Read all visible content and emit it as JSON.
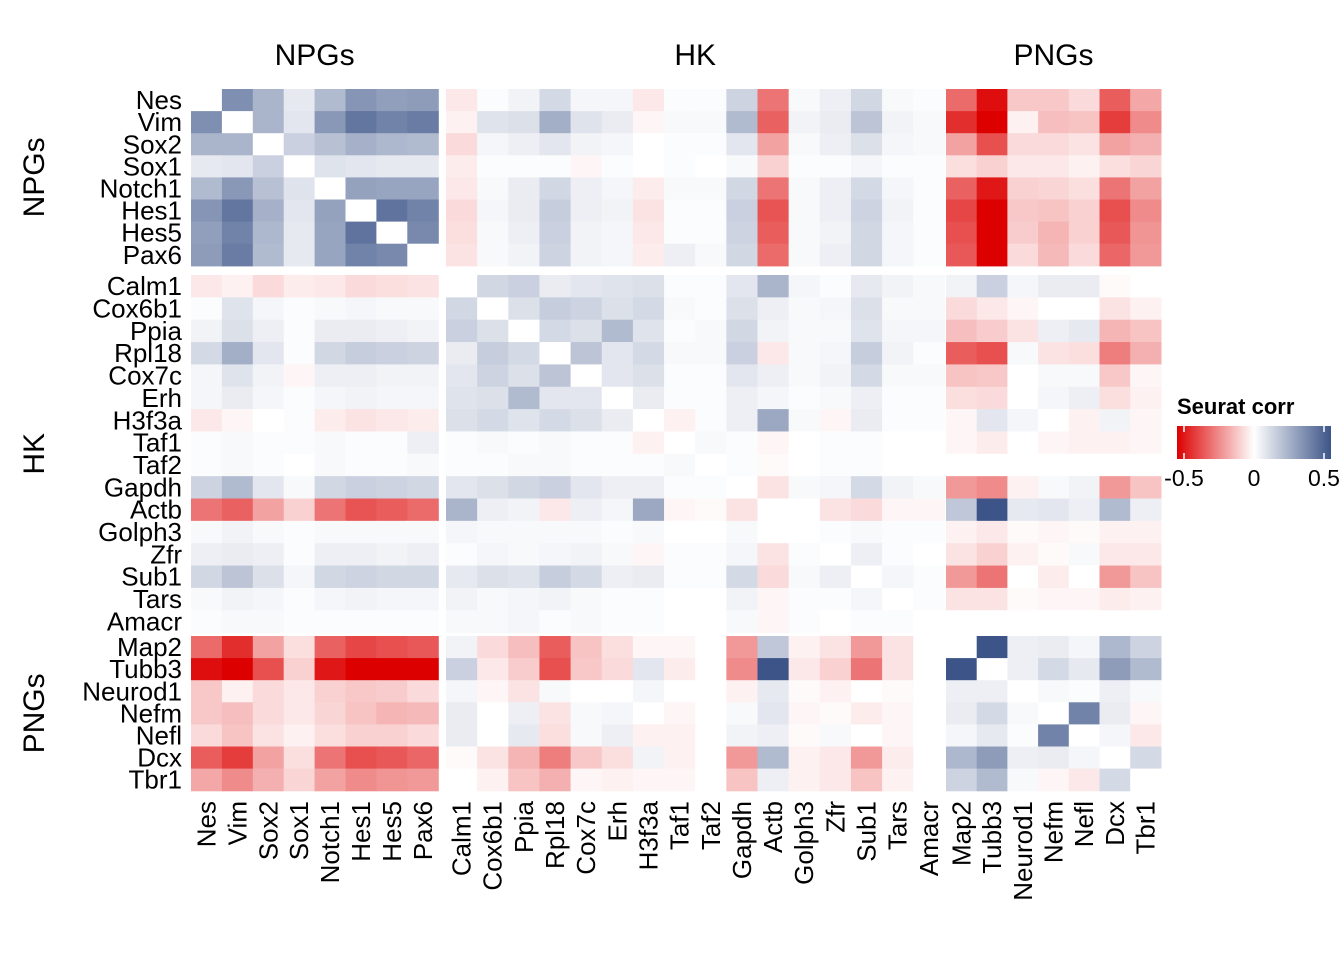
{
  "chart_data": {
    "type": "heatmap",
    "genes": [
      "Nes",
      "Vim",
      "Sox2",
      "Sox1",
      "Notch1",
      "Hes1",
      "Hes5",
      "Pax6",
      "Calm1",
      "Cox6b1",
      "Ppia",
      "Rpl18",
      "Cox7c",
      "Erh",
      "H3f3a",
      "Taf1",
      "Taf2",
      "Gapdh",
      "Actb",
      "Golph3",
      "Zfr",
      "Sub1",
      "Tars",
      "Amacr",
      "Map2",
      "Tubb3",
      "Neurod1",
      "Nefm",
      "Nefl",
      "Dcx",
      "Tbr1"
    ],
    "groups": [
      {
        "label": "NPGs",
        "size": 8
      },
      {
        "label": "HK",
        "size": 16
      },
      {
        "label": "PNGs",
        "size": 7
      }
    ],
    "legend": {
      "title": "Seurat corr",
      "ticks": [
        "-0.5",
        "0",
        "0.5"
      ],
      "range": [
        -0.55,
        0.55
      ],
      "colors": {
        "low": "#DD0000",
        "mid": "#FFFFFF",
        "high": "#3C5488"
      }
    },
    "profiles": {
      "Nes": [
        0,
        0.36,
        0.24,
        0.07,
        0.22,
        0.34,
        0.31,
        0.32,
        -0.05,
        0.01,
        0.04,
        0.12,
        0.03,
        0.03,
        -0.05,
        0.01,
        0.01,
        0.14,
        -0.3,
        0.02,
        0.05,
        0.13,
        0.02,
        0.01,
        -0.32,
        -0.52,
        -0.12,
        -0.12,
        -0.08,
        -0.35,
        -0.19
      ],
      "Vim": [
        0.36,
        0,
        0.24,
        0.08,
        0.33,
        0.44,
        0.4,
        0.42,
        -0.03,
        0.09,
        0.1,
        0.26,
        0.09,
        0.06,
        -0.02,
        0.02,
        0.02,
        0.22,
        -0.34,
        0.04,
        0.06,
        0.19,
        0.04,
        0.02,
        -0.45,
        -0.65,
        -0.03,
        -0.14,
        -0.13,
        -0.42,
        -0.25
      ],
      "Sox2": [
        0.24,
        0.24,
        0,
        0.15,
        0.2,
        0.25,
        0.23,
        0.22,
        -0.08,
        0.03,
        0.05,
        0.08,
        0.04,
        0.03,
        0.0,
        0.01,
        0.01,
        0.08,
        -0.2,
        0.02,
        0.05,
        0.1,
        0.03,
        0.02,
        -0.2,
        -0.38,
        -0.08,
        -0.08,
        -0.06,
        -0.2,
        -0.17
      ],
      "Sox1": [
        0.07,
        0.08,
        0.15,
        0,
        0.09,
        0.08,
        0.07,
        0.07,
        -0.04,
        0.01,
        0.01,
        0.01,
        -0.02,
        0.01,
        0.0,
        0.01,
        0.0,
        0.02,
        -0.1,
        0.01,
        0.01,
        0.03,
        0.01,
        0.01,
        -0.07,
        -0.1,
        -0.05,
        -0.05,
        -0.03,
        -0.07,
        -0.09
      ],
      "Notch1": [
        0.22,
        0.33,
        0.2,
        0.09,
        0,
        0.3,
        0.29,
        0.29,
        -0.05,
        0.02,
        0.06,
        0.13,
        0.05,
        0.03,
        -0.04,
        0.02,
        0.02,
        0.13,
        -0.3,
        0.02,
        0.05,
        0.12,
        0.03,
        0.01,
        -0.34,
        -0.5,
        -0.1,
        -0.09,
        -0.07,
        -0.3,
        -0.2
      ],
      "Hes1": [
        0.34,
        0.44,
        0.25,
        0.08,
        0.3,
        0,
        0.45,
        0.4,
        -0.08,
        0.03,
        0.06,
        0.16,
        0.05,
        0.04,
        -0.06,
        0.01,
        0.01,
        0.15,
        -0.37,
        0.02,
        0.05,
        0.14,
        0.04,
        0.01,
        -0.4,
        -0.63,
        -0.12,
        -0.13,
        -0.1,
        -0.38,
        -0.25
      ],
      "Hes5": [
        0.31,
        0.4,
        0.23,
        0.07,
        0.29,
        0.45,
        0,
        0.38,
        -0.07,
        0.02,
        0.05,
        0.15,
        0.04,
        0.03,
        -0.05,
        0.01,
        0.01,
        0.14,
        -0.35,
        0.02,
        0.04,
        0.13,
        0.03,
        0.01,
        -0.38,
        -0.62,
        -0.11,
        -0.16,
        -0.1,
        -0.36,
        -0.23
      ],
      "Pax6": [
        0.32,
        0.42,
        0.22,
        0.07,
        0.29,
        0.4,
        0.38,
        0,
        -0.06,
        0.02,
        0.04,
        0.14,
        0.04,
        0.03,
        -0.04,
        0.05,
        0.02,
        0.13,
        -0.32,
        0.02,
        0.05,
        0.13,
        0.03,
        0.01,
        -0.36,
        -0.6,
        -0.08,
        -0.15,
        -0.08,
        -0.33,
        -0.22
      ],
      "Calm1": [
        -0.05,
        -0.03,
        -0.08,
        -0.04,
        -0.05,
        -0.08,
        -0.07,
        -0.06,
        0,
        0.13,
        0.15,
        0.06,
        0.08,
        0.09,
        0.1,
        0.01,
        0.01,
        0.08,
        0.24,
        0.03,
        0.01,
        0.07,
        0.04,
        0.02,
        0.04,
        0.15,
        0.03,
        0.06,
        0.06,
        -0.01,
        0.0
      ],
      "Cox6b1": [
        0.01,
        0.09,
        0.03,
        0.01,
        0.02,
        0.03,
        0.02,
        0.02,
        0.13,
        0,
        0.1,
        0.16,
        0.14,
        0.1,
        0.12,
        0.02,
        0.01,
        0.1,
        0.05,
        0.02,
        0.03,
        0.1,
        0.02,
        0.02,
        -0.08,
        -0.05,
        -0.02,
        0.0,
        0.0,
        -0.06,
        -0.03
      ],
      "Ppia": [
        0.04,
        0.1,
        0.05,
        0.01,
        0.06,
        0.06,
        0.05,
        0.04,
        0.15,
        0.1,
        0,
        0.12,
        0.1,
        0.22,
        0.09,
        0.01,
        0.02,
        0.13,
        0.04,
        0.02,
        0.02,
        0.09,
        0.03,
        0.03,
        -0.14,
        -0.11,
        -0.06,
        0.05,
        0.07,
        -0.16,
        -0.13
      ],
      "Rpl18": [
        0.12,
        0.26,
        0.08,
        0.01,
        0.13,
        0.16,
        0.15,
        0.14,
        0.06,
        0.16,
        0.12,
        0,
        0.19,
        0.08,
        0.12,
        0.02,
        0.02,
        0.15,
        -0.05,
        0.02,
        0.03,
        0.16,
        0.04,
        0.01,
        -0.35,
        -0.38,
        0.02,
        -0.06,
        -0.07,
        -0.28,
        -0.17
      ],
      "Cox7c": [
        0.03,
        0.09,
        0.04,
        -0.02,
        0.05,
        0.05,
        0.04,
        0.04,
        0.08,
        0.14,
        0.1,
        0.19,
        0,
        0.08,
        0.1,
        0.01,
        0.01,
        0.08,
        0.05,
        0.02,
        0.04,
        0.12,
        0.02,
        0.02,
        -0.13,
        -0.12,
        0.0,
        0.02,
        0.02,
        -0.12,
        -0.02
      ],
      "Erh": [
        0.03,
        0.06,
        0.03,
        0.01,
        0.03,
        0.04,
        0.03,
        0.03,
        0.09,
        0.1,
        0.22,
        0.08,
        0.08,
        0,
        0.06,
        0.01,
        0.01,
        0.05,
        0.03,
        0.01,
        0.02,
        0.05,
        0.01,
        0.01,
        -0.07,
        -0.08,
        0.0,
        0.03,
        0.05,
        -0.07,
        -0.03
      ],
      "H3f3a": [
        -0.05,
        -0.02,
        0.0,
        0.01,
        -0.04,
        -0.06,
        -0.05,
        -0.04,
        0.1,
        0.12,
        0.09,
        0.12,
        0.1,
        0.06,
        0,
        -0.03,
        0.01,
        0.05,
        0.28,
        0.02,
        -0.02,
        0.06,
        0.01,
        0.01,
        -0.02,
        0.08,
        0.03,
        0.0,
        -0.03,
        0.04,
        -0.02
      ],
      "Taf1": [
        0.01,
        0.02,
        0.01,
        0.01,
        0.02,
        0.01,
        0.01,
        0.05,
        0.01,
        0.02,
        0.01,
        0.02,
        0.01,
        0.01,
        -0.03,
        0,
        0.02,
        0.01,
        -0.02,
        0.0,
        0.01,
        0.01,
        0.0,
        0.0,
        -0.02,
        -0.04,
        0.0,
        -0.02,
        -0.03,
        -0.03,
        -0.02
      ],
      "Taf2": [
        0.01,
        0.02,
        0.01,
        0.0,
        0.02,
        0.01,
        0.01,
        0.02,
        0.01,
        0.01,
        0.02,
        0.02,
        0.01,
        0.01,
        0.01,
        0.02,
        0,
        0.01,
        -0.01,
        0.0,
        0.01,
        0.01,
        0.0,
        0.0,
        0.0,
        0.0,
        0.0,
        0.0,
        0.0,
        0.0,
        0.0
      ],
      "Gapdh": [
        0.14,
        0.22,
        0.08,
        0.02,
        0.13,
        0.15,
        0.14,
        0.13,
        0.08,
        0.1,
        0.13,
        0.15,
        0.08,
        0.05,
        0.05,
        0.01,
        0.01,
        0,
        -0.06,
        0.02,
        0.03,
        0.12,
        0.04,
        0.02,
        -0.22,
        -0.25,
        -0.03,
        0.02,
        0.04,
        -0.22,
        -0.13
      ],
      "Actb": [
        -0.3,
        -0.34,
        -0.2,
        -0.1,
        -0.3,
        -0.37,
        -0.35,
        -0.32,
        0.24,
        0.05,
        0.04,
        -0.05,
        0.05,
        0.03,
        0.28,
        -0.02,
        -0.01,
        -0.06,
        0,
        0.0,
        -0.06,
        -0.08,
        -0.02,
        -0.02,
        0.18,
        0.55,
        0.07,
        0.08,
        0.05,
        0.22,
        0.05
      ],
      "Golph3": [
        0.02,
        0.04,
        0.02,
        0.01,
        0.02,
        0.02,
        0.02,
        0.02,
        0.03,
        0.02,
        0.02,
        0.02,
        0.02,
        0.01,
        0.02,
        0.0,
        0.0,
        0.02,
        0.0,
        0,
        0.01,
        0.02,
        0.01,
        0.01,
        -0.03,
        -0.05,
        -0.01,
        -0.02,
        -0.01,
        -0.03,
        -0.03
      ],
      "Zfr": [
        0.05,
        0.06,
        0.05,
        0.01,
        0.05,
        0.05,
        0.04,
        0.05,
        0.01,
        0.03,
        0.02,
        0.03,
        0.04,
        0.02,
        -0.02,
        0.01,
        0.01,
        0.03,
        -0.06,
        0.01,
        0,
        0.05,
        0.01,
        0.0,
        -0.06,
        -0.1,
        -0.03,
        -0.01,
        0.02,
        -0.05,
        -0.05
      ],
      "Sub1": [
        0.13,
        0.19,
        0.1,
        0.03,
        0.13,
        0.14,
        0.13,
        0.13,
        0.07,
        0.1,
        0.09,
        0.16,
        0.12,
        0.05,
        0.06,
        0.01,
        0.01,
        0.12,
        -0.08,
        0.02,
        0.05,
        0,
        0.03,
        0.01,
        -0.22,
        -0.3,
        0.0,
        -0.04,
        0.0,
        -0.22,
        -0.13
      ],
      "Tars": [
        0.02,
        0.04,
        0.03,
        0.01,
        0.03,
        0.04,
        0.03,
        0.03,
        0.04,
        0.02,
        0.03,
        0.04,
        0.02,
        0.01,
        0.01,
        0.0,
        0.0,
        0.04,
        -0.02,
        0.01,
        0.01,
        0.03,
        0,
        0.01,
        -0.06,
        -0.06,
        -0.01,
        -0.02,
        -0.02,
        -0.04,
        -0.03
      ],
      "Amacr": [
        0.01,
        0.02,
        0.02,
        0.01,
        0.01,
        0.01,
        0.01,
        0.01,
        0.02,
        0.02,
        0.03,
        0.01,
        0.02,
        0.01,
        0.01,
        0.0,
        0.0,
        0.02,
        -0.02,
        0.01,
        0.0,
        0.01,
        0.01,
        0,
        0.0,
        0.0,
        0.0,
        0.0,
        0.0,
        0.0,
        0.0
      ],
      "Map2": [
        -0.32,
        -0.45,
        -0.2,
        -0.07,
        -0.34,
        -0.4,
        -0.38,
        -0.36,
        0.04,
        -0.08,
        -0.14,
        -0.35,
        -0.13,
        -0.07,
        -0.02,
        -0.02,
        0.0,
        -0.22,
        0.18,
        -0.03,
        -0.06,
        -0.22,
        -0.06,
        0.0,
        0,
        0.55,
        0.05,
        0.06,
        0.03,
        0.23,
        0.14
      ],
      "Tubb3": [
        -0.52,
        -0.65,
        -0.38,
        -0.1,
        -0.5,
        -0.63,
        -0.62,
        -0.6,
        0.15,
        -0.05,
        -0.11,
        -0.38,
        -0.12,
        -0.08,
        0.08,
        -0.04,
        0.0,
        -0.25,
        0.55,
        -0.05,
        -0.1,
        -0.3,
        -0.06,
        0.0,
        0.55,
        0,
        0.05,
        0.12,
        0.07,
        0.32,
        0.22
      ],
      "Neurod1": [
        -0.12,
        -0.03,
        -0.08,
        -0.05,
        -0.1,
        -0.12,
        -0.11,
        -0.08,
        0.03,
        -0.02,
        -0.06,
        0.02,
        0.0,
        0.0,
        0.03,
        0.0,
        0.0,
        -0.03,
        0.07,
        -0.01,
        -0.03,
        0.0,
        -0.01,
        0.0,
        0.05,
        0.05,
        0,
        0.02,
        0.01,
        0.05,
        0.02
      ],
      "Nefm": [
        -0.12,
        -0.14,
        -0.08,
        -0.05,
        -0.09,
        -0.13,
        -0.16,
        -0.15,
        0.06,
        0.0,
        0.05,
        -0.06,
        0.02,
        0.03,
        0.0,
        -0.02,
        0.0,
        0.02,
        0.08,
        -0.02,
        -0.01,
        -0.04,
        -0.02,
        0.0,
        0.06,
        0.12,
        0.02,
        0,
        0.4,
        0.06,
        -0.02
      ],
      "Nefl": [
        -0.08,
        -0.13,
        -0.06,
        -0.03,
        -0.07,
        -0.1,
        -0.1,
        -0.08,
        0.06,
        0.0,
        0.07,
        -0.07,
        0.02,
        0.05,
        -0.03,
        -0.03,
        0.0,
        0.04,
        0.05,
        -0.01,
        0.02,
        0.0,
        -0.02,
        0.0,
        0.03,
        0.07,
        0.01,
        0.4,
        0,
        0.03,
        -0.05
      ],
      "Dcx": [
        -0.35,
        -0.42,
        -0.2,
        -0.07,
        -0.3,
        -0.38,
        -0.36,
        -0.33,
        -0.01,
        -0.06,
        -0.16,
        -0.28,
        -0.12,
        -0.07,
        0.04,
        -0.03,
        0.0,
        -0.22,
        0.22,
        -0.03,
        -0.05,
        -0.22,
        -0.04,
        0.0,
        0.23,
        0.32,
        0.05,
        0.06,
        0.03,
        0,
        0.12
      ],
      "Tbr1": [
        -0.19,
        -0.25,
        -0.17,
        -0.09,
        -0.2,
        -0.25,
        -0.23,
        -0.22,
        0.0,
        -0.03,
        -0.13,
        -0.17,
        -0.02,
        -0.03,
        -0.02,
        -0.02,
        0.0,
        -0.13,
        0.05,
        -0.03,
        -0.05,
        -0.13,
        -0.03,
        0.0,
        0.14,
        0.22,
        0.02,
        -0.02,
        -0.05,
        0.12,
        0
      ]
    }
  }
}
